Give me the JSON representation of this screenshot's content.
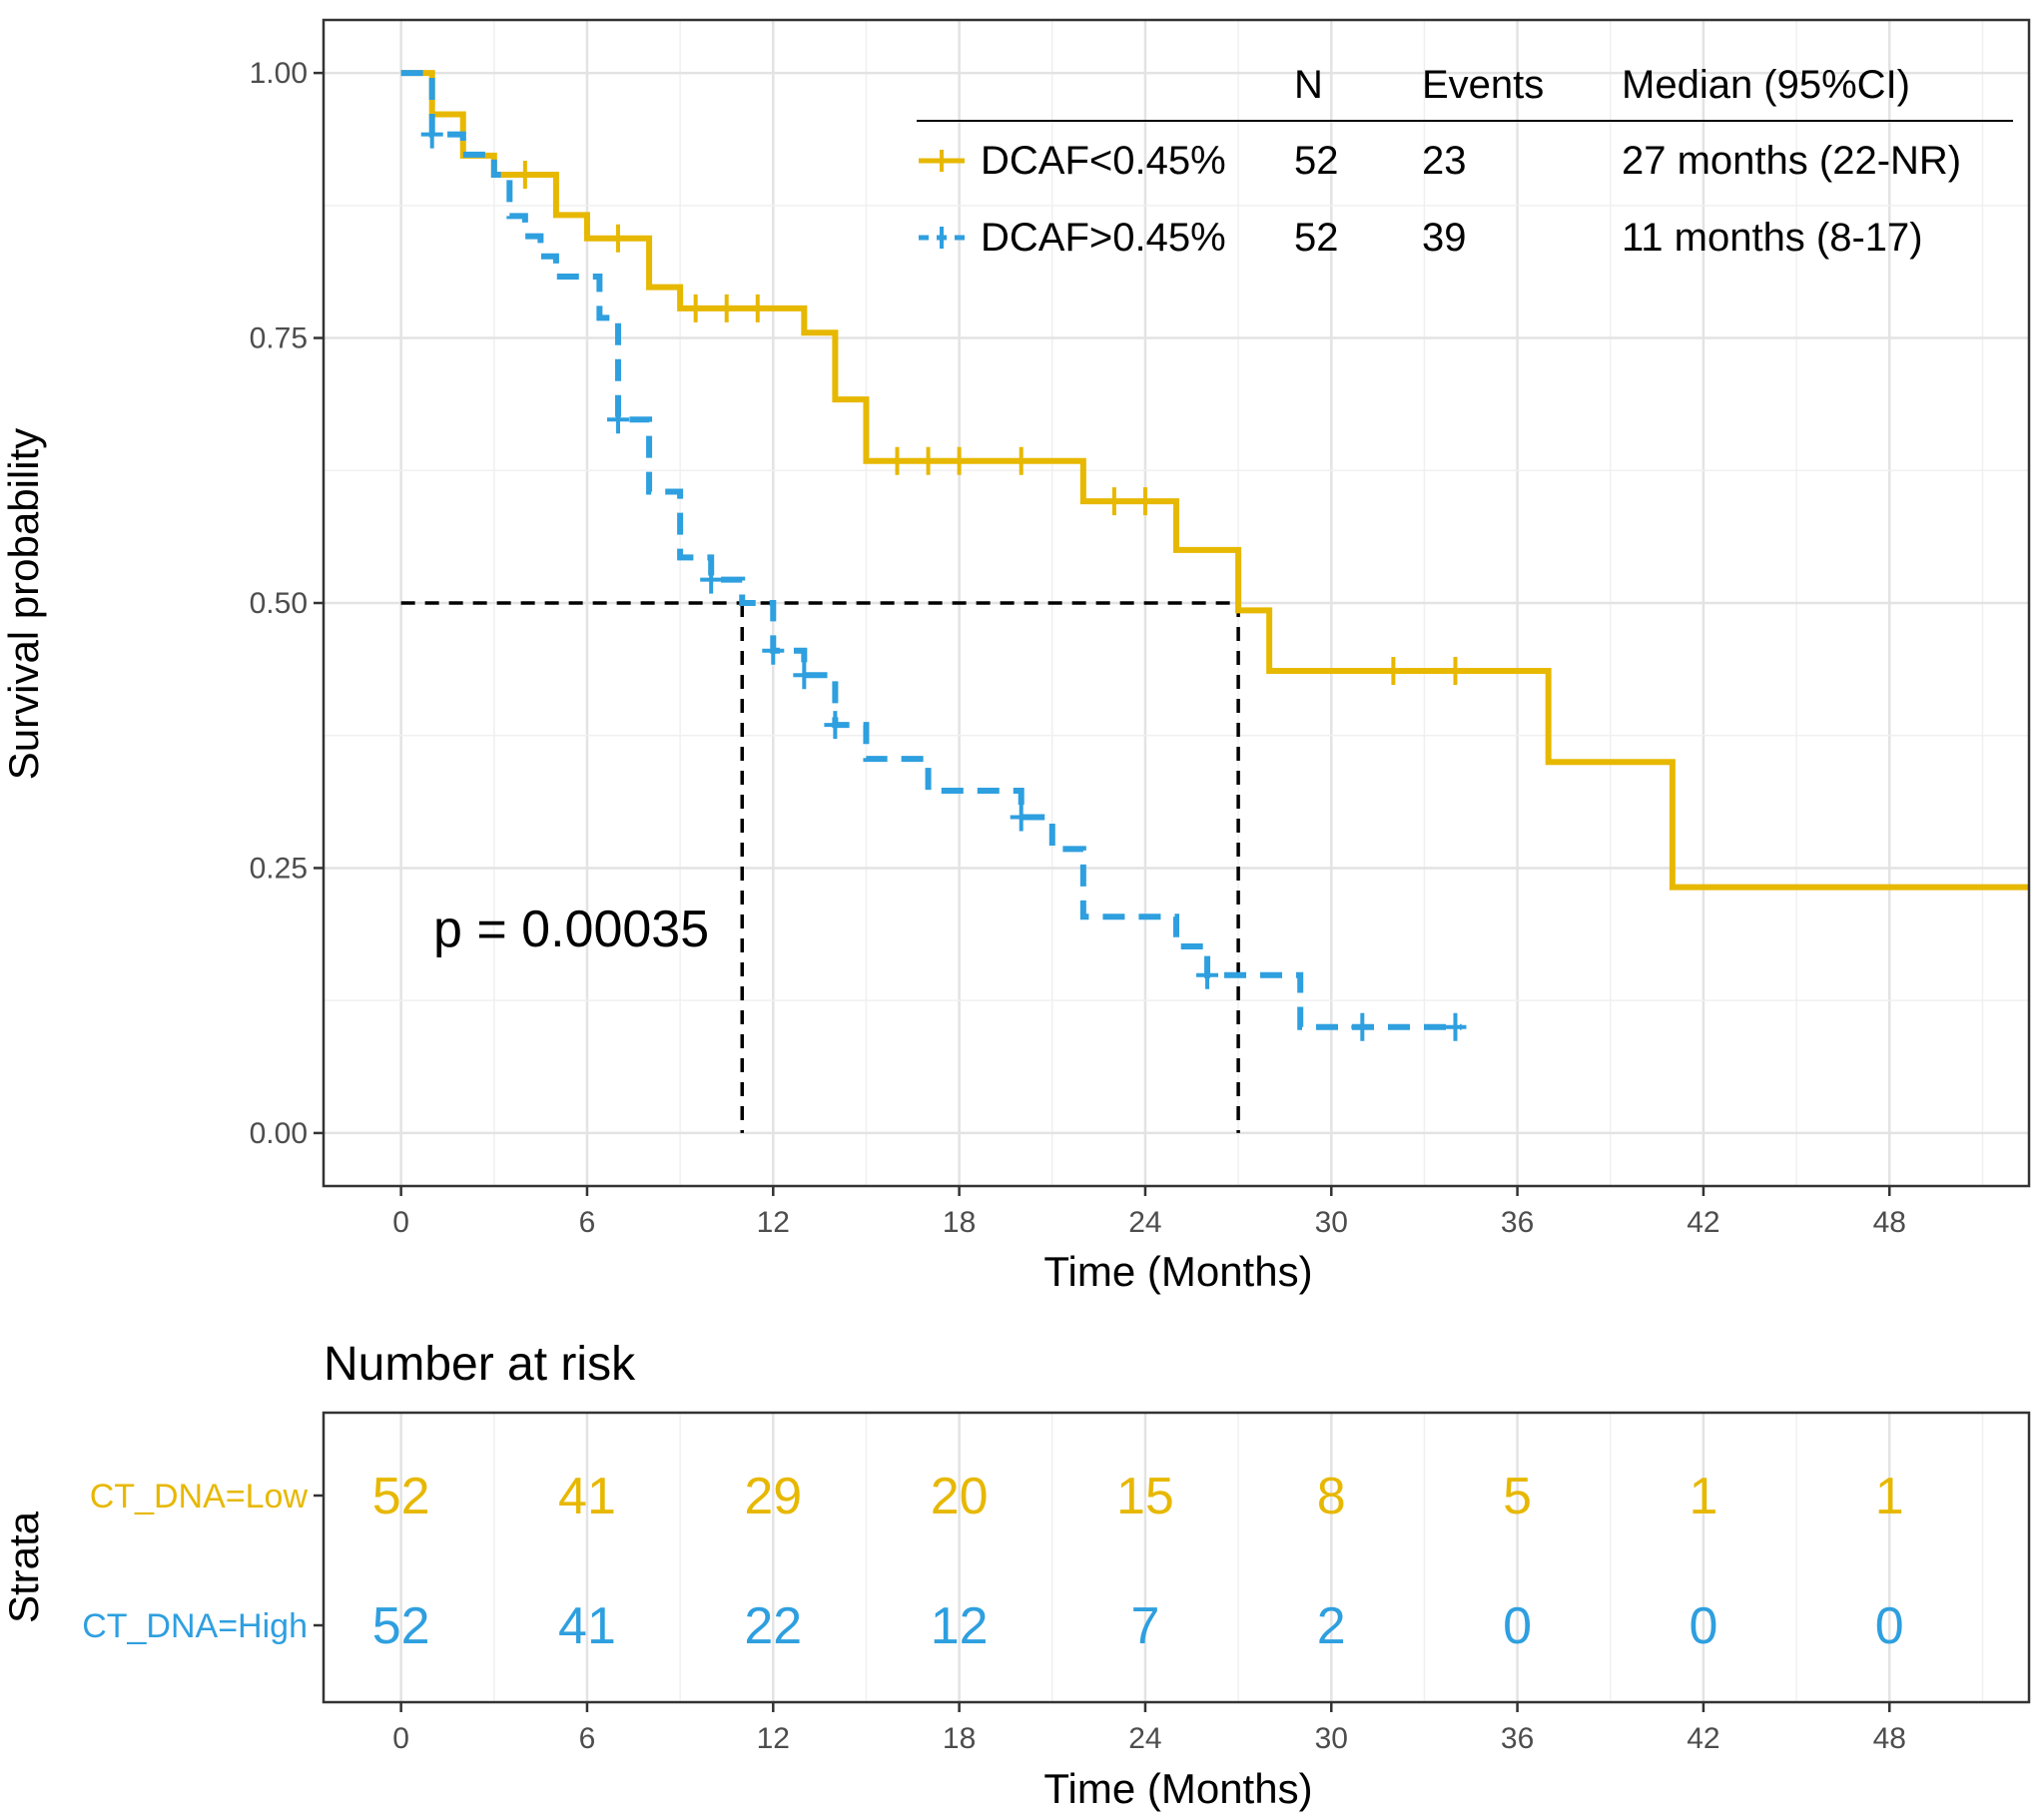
{
  "chart_data": [
    {
      "type": "line",
      "subtype": "kaplan-meier",
      "xlabel": "Time (Months)",
      "ylabel": "Survival probability",
      "xlim": [
        -2.5,
        52.5
      ],
      "ylim": [
        -0.05,
        1.05
      ],
      "x_ticks": [
        "0",
        "6",
        "12",
        "18",
        "24",
        "30",
        "36",
        "42",
        "48"
      ],
      "y_ticks": [
        "0.00",
        "0.25",
        "0.50",
        "0.75",
        "1.00"
      ],
      "grid": true,
      "annotation": "p = 0.00035",
      "median_reference": {
        "y": 0.5,
        "x_high": 11,
        "x_low": 27
      },
      "legend": {
        "headers": [
          "N",
          "Events",
          "Median (95%CI)"
        ],
        "rows": [
          {
            "label": "DCAF<0.45%",
            "n": "52",
            "events": "23",
            "median": "27 months (22-NR)"
          },
          {
            "label": "DCAF>0.45%",
            "n": "52",
            "events": "39",
            "median": "11 months (8-17)"
          }
        ]
      },
      "series": [
        {
          "name": "DCAF<0.45%",
          "color": "#E7B800",
          "dash": "solid",
          "steps": [
            [
              0,
              1.0
            ],
            [
              1,
              0.961
            ],
            [
              2,
              0.922
            ],
            [
              3,
              0.904
            ],
            [
              5,
              0.866
            ],
            [
              6,
              0.844
            ],
            [
              8,
              0.798
            ],
            [
              9,
              0.778
            ],
            [
              13,
              0.755
            ],
            [
              14,
              0.692
            ],
            [
              15,
              0.634
            ],
            [
              22,
              0.596
            ],
            [
              25,
              0.55
            ],
            [
              27,
              0.493
            ],
            [
              28,
              0.436
            ],
            [
              37,
              0.35
            ],
            [
              41,
              0.232
            ],
            [
              52.5,
              0.232
            ]
          ],
          "censors": [
            [
              4,
              0.904
            ],
            [
              7,
              0.844
            ],
            [
              9.5,
              0.778
            ],
            [
              10.5,
              0.778
            ],
            [
              11.5,
              0.778
            ],
            [
              16,
              0.634
            ],
            [
              17,
              0.634
            ],
            [
              18,
              0.634
            ],
            [
              20,
              0.634
            ],
            [
              23,
              0.596
            ],
            [
              24,
              0.596
            ],
            [
              32,
              0.436
            ],
            [
              34,
              0.436
            ]
          ]
        },
        {
          "name": "DCAF>0.45%",
          "color": "#2E9FDF",
          "dash": "dashed",
          "steps": [
            [
              0,
              1.0
            ],
            [
              1,
              0.942
            ],
            [
              2,
              0.923
            ],
            [
              3,
              0.904
            ],
            [
              3.5,
              0.865
            ],
            [
              4,
              0.846
            ],
            [
              4.5,
              0.827
            ],
            [
              5,
              0.808
            ],
            [
              6,
              0.808
            ],
            [
              6.4,
              0.769
            ],
            [
              7,
              0.673
            ],
            [
              8,
              0.605
            ],
            [
              9,
              0.543
            ],
            [
              10,
              0.522
            ],
            [
              11,
              0.5
            ],
            [
              12,
              0.455
            ],
            [
              13,
              0.432
            ],
            [
              14,
              0.385
            ],
            [
              15,
              0.353
            ],
            [
              17,
              0.323
            ],
            [
              20,
              0.298
            ],
            [
              21,
              0.268
            ],
            [
              22,
              0.204
            ],
            [
              25,
              0.176
            ],
            [
              26,
              0.149
            ],
            [
              29,
              0.1
            ],
            [
              34.2,
              0.1
            ]
          ],
          "censors": [
            [
              1,
              0.942
            ],
            [
              7,
              0.673
            ],
            [
              10,
              0.522
            ],
            [
              12,
              0.455
            ],
            [
              13,
              0.432
            ],
            [
              14,
              0.385
            ],
            [
              20,
              0.298
            ],
            [
              26,
              0.149
            ],
            [
              31,
              0.1
            ],
            [
              34,
              0.1
            ]
          ]
        }
      ]
    },
    {
      "type": "table",
      "title": "Number at risk",
      "xlabel": "Time (Months)",
      "ylabel": "Strata",
      "x_ticks": [
        "0",
        "6",
        "12",
        "18",
        "24",
        "30",
        "36",
        "42",
        "48"
      ],
      "rows": [
        {
          "label": "CT_DNA=Low",
          "color": "#E7B800",
          "values": [
            "52",
            "41",
            "29",
            "20",
            "15",
            "8",
            "5",
            "1",
            "1"
          ]
        },
        {
          "label": "CT_DNA=High",
          "color": "#2E9FDF",
          "values": [
            "52",
            "41",
            "22",
            "12",
            "7",
            "2",
            "0",
            "0",
            "0"
          ]
        }
      ]
    }
  ]
}
